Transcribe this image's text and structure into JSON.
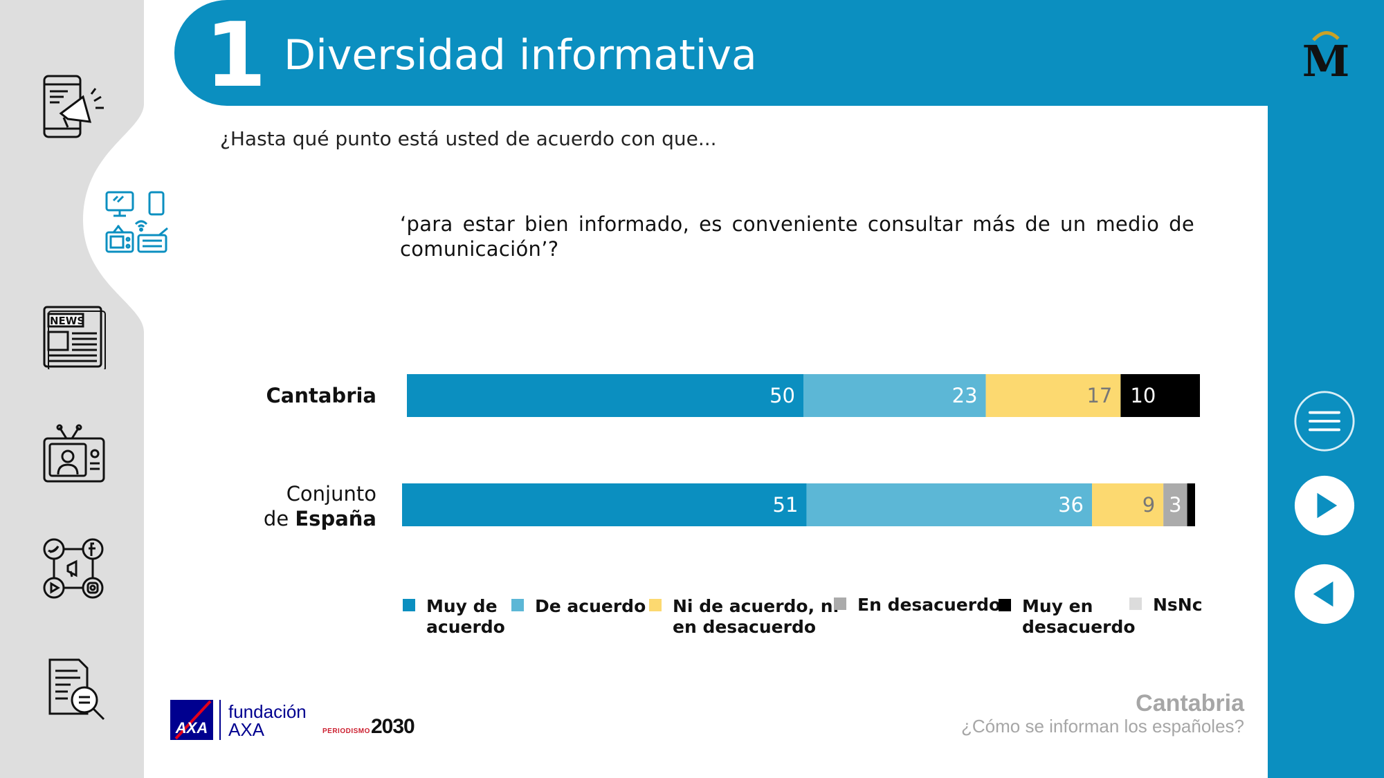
{
  "header": {
    "number": "1",
    "title": "Diversidad informativa"
  },
  "question": {
    "intro": "¿Hasta qué punto está usted de acuerdo con que...",
    "text": "‘para estar bien informado, es conveniente consultar más de un medio de comunicación’?"
  },
  "colors": {
    "brand_blue": "#0b8fc0",
    "muy_de_acuerdo": "#0b8fc0",
    "de_acuerdo": "#5cb7d6",
    "ni_ni": "#fcd970",
    "en_desacuerdo": "#ababab",
    "muy_en_desacuerdo": "#000000",
    "nsnc": "#dcdcdc"
  },
  "chart_data": {
    "type": "bar",
    "orientation": "horizontal",
    "stacked": true,
    "categories": [
      "Cantabria",
      "Conjunto de España"
    ],
    "category_labels": [
      {
        "lines": [
          {
            "parts": [
              {
                "text": "Cantabria",
                "bold": true
              }
            ]
          }
        ]
      },
      {
        "lines": [
          {
            "parts": [
              {
                "text": "Conjunto",
                "bold": false
              }
            ]
          },
          {
            "parts": [
              {
                "text": "de ",
                "bold": false
              },
              {
                "text": "España",
                "bold": true
              }
            ]
          }
        ]
      }
    ],
    "series": [
      {
        "name": "Muy de acuerdo",
        "values": [
          50,
          51
        ],
        "color": "#0b8fc0",
        "label_color": "#ffffff"
      },
      {
        "name": "De acuerdo",
        "values": [
          23,
          36
        ],
        "color": "#5cb7d6",
        "label_color": "#ffffff"
      },
      {
        "name": "Ni de acuerdo, ni en desacuerdo",
        "values": [
          17,
          9
        ],
        "color": "#fcd970",
        "label_color": "#777777"
      },
      {
        "name": "En desacuerdo",
        "values": [
          0,
          3
        ],
        "color": "#ababab",
        "label_color": "#ffffff"
      },
      {
        "name": "Muy en desacuerdo",
        "values": [
          10,
          1
        ],
        "color": "#000000",
        "label_color": "#ffffff"
      },
      {
        "name": "NsNc",
        "values": [
          0,
          0
        ],
        "color": "#dcdcdc",
        "label_color": "#ffffff"
      }
    ],
    "data_labels": [
      [
        "50",
        "23",
        "17",
        "",
        "10",
        ""
      ],
      [
        "51",
        "36",
        "9",
        "3",
        "",
        ""
      ]
    ],
    "xlim": [
      0,
      100
    ],
    "legend": {
      "position": "bottom",
      "items": [
        {
          "lines": [
            "Muy de",
            "acuerdo"
          ],
          "color": "#0b8fc0"
        },
        {
          "lines": [
            "De acuerdo"
          ],
          "color": "#5cb7d6"
        },
        {
          "lines": [
            "Ni de acuerdo, ni",
            "en desacuerdo"
          ],
          "color": "#fcd970"
        },
        {
          "lines": [
            "En desacuerdo"
          ],
          "color": "#ababab"
        },
        {
          "lines": [
            "Muy en",
            "desacuerdo"
          ],
          "color": "#000000"
        },
        {
          "lines": [
            "NsNc"
          ],
          "color": "#dcdcdc"
        }
      ]
    },
    "grid": false
  },
  "footer": {
    "region": "Cantabria",
    "subtitle": "¿Cómo se informan los españoles?",
    "fundacion": [
      "fundación",
      "AXA"
    ],
    "axa": "AXA",
    "periodismo_small": "PERIODISMO",
    "periodismo_big": "2030"
  },
  "sidebar_icons": [
    "phone-megaphone-icon",
    "devices-icon",
    "newspaper-icon",
    "tv-presenter-icon",
    "social-media-icon",
    "document-search-icon"
  ],
  "sidebar_icon_text": {
    "news": "NEWS"
  },
  "nav_icons": [
    "menu-icon",
    "next-icon",
    "previous-icon"
  ],
  "brand_logo": "M"
}
